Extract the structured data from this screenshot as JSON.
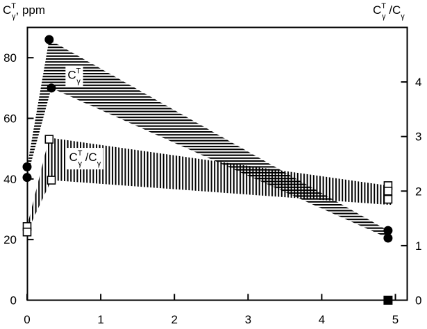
{
  "chart_data": {
    "type": "scatter",
    "xlim": [
      0,
      5
    ],
    "ylim_left": [
      0,
      90
    ],
    "ylim_right": [
      0,
      5
    ],
    "x_ticks": [
      0,
      1,
      2,
      3,
      4,
      5
    ],
    "y_ticks_left": [
      0,
      20,
      40,
      60,
      80
    ],
    "y_ticks_right": [
      0,
      1,
      2,
      3,
      4
    ],
    "grid": false,
    "left_axis_title": {
      "main": "C",
      "sup": "T",
      "sub": "γ",
      "rest": ", ppm"
    },
    "right_axis_title": {
      "main": "C",
      "sup": "T",
      "sub": "γ",
      "rest": " /C",
      "sub2": "γ"
    },
    "series": [
      {
        "axis": "left",
        "marker": "filled-circle",
        "points": [
          {
            "x": 0.0,
            "y": 44
          },
          {
            "x": 0.0,
            "y": 40.5
          },
          {
            "x": 0.3,
            "y": 86
          },
          {
            "x": 0.33,
            "y": 70
          },
          {
            "x": 4.9,
            "y": 23
          },
          {
            "x": 4.9,
            "y": 20.5
          }
        ]
      },
      {
        "axis": "right",
        "marker": "open-square",
        "points": [
          {
            "x": 0.0,
            "y": 1.35
          },
          {
            "x": 0.0,
            "y": 1.25
          },
          {
            "x": 0.3,
            "y": 2.95
          },
          {
            "x": 0.33,
            "y": 2.2
          },
          {
            "x": 4.9,
            "y": 2.1
          },
          {
            "x": 4.9,
            "y": 2.0
          },
          {
            "x": 4.9,
            "y": 1.85
          }
        ]
      },
      {
        "axis": "left",
        "marker": "filled-square",
        "points": [
          {
            "x": 4.9,
            "y": 0
          }
        ]
      }
    ],
    "bands": [
      {
        "axis": "left",
        "hatch": "horizontal",
        "label": {
          "main": "C",
          "sup": "T",
          "sub": "γ"
        },
        "label_at": {
          "x": 0.55,
          "y": 73
        },
        "upper": [
          [
            0.0,
            44
          ],
          [
            0.3,
            86
          ],
          [
            4.9,
            23
          ]
        ],
        "lower": [
          [
            0.0,
            40.5
          ],
          [
            0.33,
            70
          ],
          [
            4.9,
            20.5
          ]
        ]
      },
      {
        "axis": "right",
        "hatch": "vertical",
        "label": {
          "main": "C",
          "sup": "T",
          "sub": "γ",
          "rest": " /C",
          "sub2": "γ"
        },
        "label_at": {
          "x": 0.57,
          "y": 2.55
        },
        "upper": [
          [
            0.0,
            1.35
          ],
          [
            0.3,
            2.98
          ],
          [
            4.9,
            2.1
          ],
          [
            4.95,
            1.75
          ]
        ],
        "lower": [
          [
            0.0,
            1.25
          ],
          [
            0.33,
            2.2
          ],
          [
            4.9,
            1.75
          ]
        ]
      }
    ]
  }
}
